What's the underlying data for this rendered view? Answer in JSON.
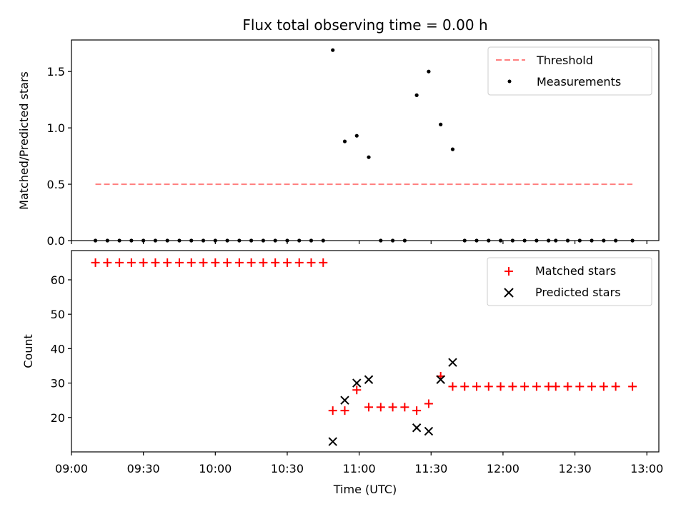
{
  "chart_data": [
    {
      "type": "scatter",
      "title": "Flux total observing time = 0.00 h",
      "xlabel": "",
      "ylabel": "Matched/Predicted stars",
      "ylim": [
        0,
        1.78
      ],
      "yticks": [
        "0.0",
        "0.5",
        "1.0",
        "1.5"
      ],
      "ytick_values": [
        0,
        0.5,
        1.0,
        1.5
      ],
      "legend_placement": "top-right",
      "threshold": {
        "name": "Threshold",
        "value": 0.5,
        "x_start": "09:10",
        "x_end": "12:54",
        "color": "#ff7f7f"
      },
      "series": [
        {
          "name": "Measurements",
          "color": "#000000",
          "x": [
            "09:10",
            "09:15",
            "09:20",
            "09:25",
            "09:30",
            "09:35",
            "09:40",
            "09:45",
            "09:50",
            "09:55",
            "10:00",
            "10:05",
            "10:10",
            "10:15",
            "10:20",
            "10:25",
            "10:30",
            "10:35",
            "10:40",
            "10:45",
            "10:49",
            "10:54",
            "10:59",
            "11:04",
            "11:09",
            "11:14",
            "11:19",
            "11:24",
            "11:29",
            "11:34",
            "11:39",
            "11:44",
            "11:49",
            "11:54",
            "11:59",
            "12:04",
            "12:09",
            "12:14",
            "12:19",
            "12:22",
            "12:27",
            "12:32",
            "12:37",
            "12:42",
            "12:47",
            "12:54"
          ],
          "y": [
            0,
            0,
            0,
            0,
            0,
            0,
            0,
            0,
            0,
            0,
            0,
            0,
            0,
            0,
            0,
            0,
            0,
            0,
            0,
            0,
            1.69,
            0.88,
            0.93,
            0.74,
            0,
            0,
            0,
            1.29,
            1.5,
            1.03,
            0.81,
            0,
            0,
            0,
            0,
            0,
            0,
            0,
            0,
            0,
            0,
            0,
            0,
            0,
            0,
            0
          ]
        }
      ]
    },
    {
      "type": "scatter",
      "title": "",
      "xlabel": "Time (UTC)",
      "ylabel": "Count",
      "ylim": [
        10,
        68.5
      ],
      "yticks": [
        "20",
        "30",
        "40",
        "50",
        "60"
      ],
      "ytick_values": [
        20,
        30,
        40,
        50,
        60
      ],
      "xlim": [
        "09:00",
        "13:05"
      ],
      "xticks": [
        "09:00",
        "09:30",
        "10:00",
        "10:30",
        "11:00",
        "11:30",
        "12:00",
        "12:30",
        "13:00"
      ],
      "legend_placement": "top-right",
      "series": [
        {
          "name": "Matched stars",
          "marker": "plus",
          "color": "#ff0000",
          "x": [
            "09:10",
            "09:15",
            "09:20",
            "09:25",
            "09:30",
            "09:35",
            "09:40",
            "09:45",
            "09:50",
            "09:55",
            "10:00",
            "10:05",
            "10:10",
            "10:15",
            "10:20",
            "10:25",
            "10:30",
            "10:35",
            "10:40",
            "10:45",
            "10:49",
            "10:54",
            "10:59",
            "11:04",
            "11:09",
            "11:14",
            "11:19",
            "11:24",
            "11:29",
            "11:34",
            "11:39",
            "11:44",
            "11:49",
            "11:54",
            "11:59",
            "12:04",
            "12:09",
            "12:14",
            "12:19",
            "12:22",
            "12:27",
            "12:32",
            "12:37",
            "12:42",
            "12:47",
            "12:54"
          ],
          "y": [
            65,
            65,
            65,
            65,
            65,
            65,
            65,
            65,
            65,
            65,
            65,
            65,
            65,
            65,
            65,
            65,
            65,
            65,
            65,
            65,
            22,
            22,
            28,
            23,
            23,
            23,
            23,
            22,
            24,
            32,
            29,
            29,
            29,
            29,
            29,
            29,
            29,
            29,
            29,
            29,
            29,
            29,
            29,
            29,
            29,
            29
          ]
        },
        {
          "name": "Predicted stars",
          "marker": "x",
          "color": "#000000",
          "x": [
            "10:49",
            "10:54",
            "10:59",
            "11:04",
            "11:24",
            "11:29",
            "11:34",
            "11:39"
          ],
          "y": [
            13,
            25,
            30,
            31,
            17,
            16,
            31,
            36
          ]
        }
      ]
    }
  ]
}
